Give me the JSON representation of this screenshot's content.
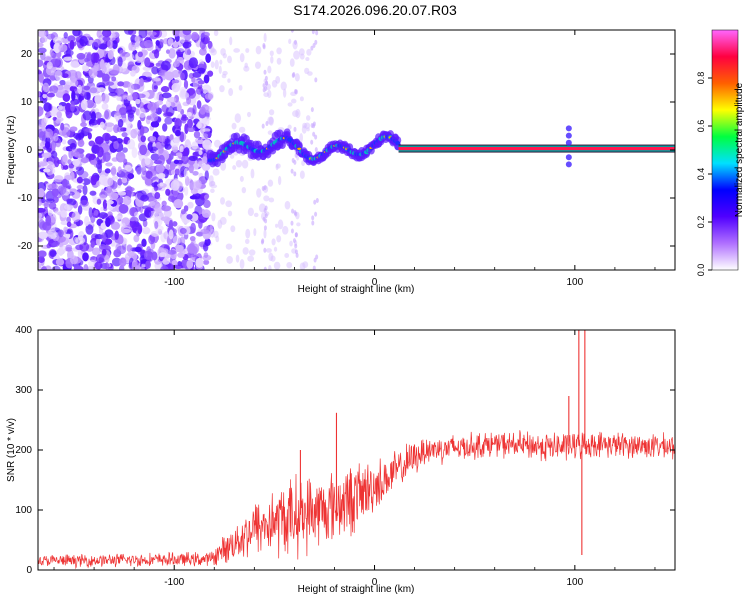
{
  "title": "S174.2026.096.20.07.R03",
  "chart_data": [
    {
      "type": "heatmap",
      "name": "spectrogram",
      "xlabel": "Height of straight line (km)",
      "ylabel": "Frequency (Hz)",
      "xlim": [
        -168,
        150
      ],
      "ylim": [
        -25,
        25
      ],
      "xticks": [
        -100,
        0,
        100
      ],
      "yticks": [
        -20,
        -10,
        0,
        10,
        20
      ],
      "colorbar": {
        "label": "Normalized spectral amplitude",
        "range": [
          0,
          1
        ],
        "ticks": [
          "0.0",
          "0.2",
          "0.4",
          "0.6",
          "0.8"
        ],
        "tick_values": [
          0.0,
          0.2,
          0.4,
          0.6,
          0.8
        ],
        "colors": [
          "#ffffff",
          "#b070ff",
          "#5000ff",
          "#0000ff",
          "#00e0ff",
          "#00ff40",
          "#ffff00",
          "#ff6000",
          "#ff0040",
          "#ff66ff"
        ]
      },
      "features": {
        "noise_region_end_km": -82,
        "signal_start_km": -82,
        "steady_line_start_km": 12,
        "steady_line_freq_hz": 0.3,
        "line_color_core": "#ff1850",
        "line_color_edge": "#00a0a0",
        "noise_color": "#7030ff"
      }
    },
    {
      "type": "line",
      "name": "snr",
      "xlabel": "Height of straight line (km)",
      "ylabel": "SNR (10 * v/v)",
      "xlim": [
        -168,
        150
      ],
      "ylim": [
        0,
        400
      ],
      "xticks": [
        -100,
        0,
        100
      ],
      "yticks": [
        0,
        100,
        200,
        300,
        400
      ],
      "color": "#ee3333",
      "baseline_segments": [
        {
          "x": -168,
          "y": 15,
          "noise": 12
        },
        {
          "x": -82,
          "y": 18,
          "noise": 14
        },
        {
          "x": -60,
          "y": 70,
          "noise": 55
        },
        {
          "x": -40,
          "y": 90,
          "noise": 80
        },
        {
          "x": -25,
          "y": 100,
          "noise": 70
        },
        {
          "x": -10,
          "y": 120,
          "noise": 70
        },
        {
          "x": 5,
          "y": 150,
          "noise": 45
        },
        {
          "x": 25,
          "y": 200,
          "noise": 30
        },
        {
          "x": 60,
          "y": 210,
          "noise": 25
        },
        {
          "x": 90,
          "y": 205,
          "noise": 30
        },
        {
          "x": 110,
          "y": 210,
          "noise": 25
        },
        {
          "x": 150,
          "y": 205,
          "noise": 25
        }
      ],
      "spikes": [
        {
          "x": -37,
          "y": 200
        },
        {
          "x": -19,
          "y": 262
        },
        {
          "x": 97,
          "y": 290
        },
        {
          "x": 102,
          "y": 400
        },
        {
          "x": 103.5,
          "y": 25
        },
        {
          "x": 105,
          "y": 400
        }
      ]
    }
  ]
}
